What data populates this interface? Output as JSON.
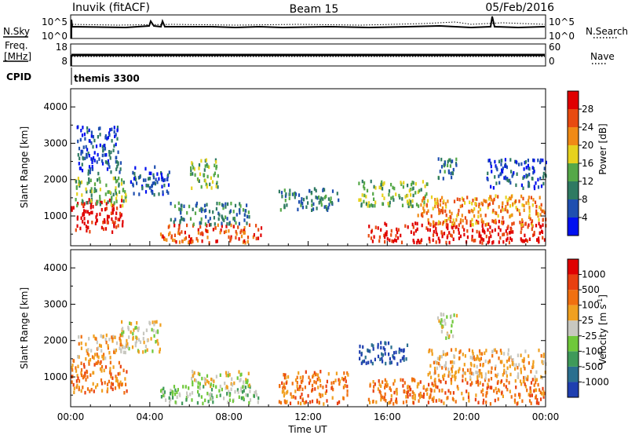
{
  "header": {
    "station": "Inuvik (fitACF)",
    "beam": "Beam 15",
    "date": "05/Feb/2016"
  },
  "strips": {
    "nsky_label": "N.Sky",
    "nsky_ticks": [
      "10^5",
      "10^0"
    ],
    "nsearch_label": "N.Search",
    "nsearch_ticks": [
      "10^5",
      "10^0"
    ],
    "freq_label_1": "Freq.",
    "freq_label_2": "[MHz]",
    "freq_ticks": [
      "18",
      "8"
    ],
    "nave_label": "Nave",
    "nave_ticks": [
      "60",
      "0"
    ],
    "cpid_label": "CPID",
    "cpid_value": "themis 3300"
  },
  "chart_data": [
    {
      "type": "heatmap",
      "name": "power",
      "xlabel": "Time UT",
      "ylabel": "Slant Range [km]",
      "xlim": [
        0,
        24
      ],
      "ylim": [
        180,
        4500
      ],
      "y_ticks": [
        "1000",
        "2000",
        "3000",
        "4000"
      ],
      "colorbar_label": "Power [dB]",
      "colorbar_ticks": [
        "4",
        "8",
        "12",
        "16",
        "20",
        "24",
        "28"
      ],
      "colorbar_colors": [
        "#0010f0",
        "#1f4fb0",
        "#2f7a62",
        "#55a848",
        "#e6d21e",
        "#f08a15",
        "#e84a10",
        "#e00000"
      ],
      "regions": [
        {
          "t": [
            0.0,
            2.6
          ],
          "r": [
            600,
            1500
          ],
          "level": 7
        },
        {
          "t": [
            0.2,
            2.8
          ],
          "r": [
            1300,
            2100
          ],
          "level": 3
        },
        {
          "t": [
            0.3,
            2.5
          ],
          "r": [
            2200,
            3500
          ],
          "level": 1
        },
        {
          "t": [
            3.0,
            5.0
          ],
          "r": [
            1600,
            2400
          ],
          "level": 1
        },
        {
          "t": [
            4.5,
            9.6
          ],
          "r": [
            300,
            800
          ],
          "level": 6
        },
        {
          "t": [
            5.0,
            9.0
          ],
          "r": [
            800,
            1400
          ],
          "level": 2
        },
        {
          "t": [
            6.0,
            7.5
          ],
          "r": [
            1800,
            2600
          ],
          "level": 3
        },
        {
          "t": [
            10.5,
            13.5
          ],
          "r": [
            1200,
            1800
          ],
          "level": 2
        },
        {
          "t": [
            14.5,
            18.0
          ],
          "r": [
            1300,
            2000
          ],
          "level": 3
        },
        {
          "t": [
            15.0,
            24.0
          ],
          "r": [
            300,
            900
          ],
          "level": 7
        },
        {
          "t": [
            17.5,
            24.0
          ],
          "r": [
            800,
            1600
          ],
          "level": 5
        },
        {
          "t": [
            18.5,
            19.5
          ],
          "r": [
            2000,
            2700
          ],
          "level": 2
        },
        {
          "t": [
            21.0,
            24.0
          ],
          "r": [
            1800,
            2600
          ],
          "level": 1
        }
      ]
    },
    {
      "type": "heatmap",
      "name": "velocity",
      "xlabel": "Time UT",
      "ylabel": "Slant Range [km]",
      "xlim": [
        0,
        24
      ],
      "ylim": [
        180,
        4500
      ],
      "y_ticks": [
        "1000",
        "2000",
        "3000",
        "4000"
      ],
      "x_ticks": [
        "00:00",
        "04:00",
        "08:00",
        "12:00",
        "16:00",
        "20:00",
        "00:00"
      ],
      "colorbar_label": "Velocity [m s",
      "colorbar_label_sup": "-1",
      "colorbar_label_end": "]",
      "colorbar_ticks": [
        "1000",
        "500",
        "100",
        "25",
        "-25",
        "-100",
        "-500",
        "-1000"
      ],
      "colorbar_colors": [
        "#1f3fb0",
        "#2a6f8f",
        "#3f9a5a",
        "#6fc83a",
        "#c8c8c0",
        "#f0a020",
        "#f07010",
        "#e84010",
        "#e00000"
      ],
      "regions": [
        {
          "t": [
            0.0,
            2.8
          ],
          "r": [
            600,
            1500
          ],
          "level": 6
        },
        {
          "t": [
            0.3,
            2.6
          ],
          "r": [
            1500,
            2200
          ],
          "level": 5
        },
        {
          "t": [
            2.5,
            4.5
          ],
          "r": [
            1700,
            2600
          ],
          "level": 4
        },
        {
          "t": [
            4.5,
            9.5
          ],
          "r": [
            300,
            800
          ],
          "level": 3
        },
        {
          "t": [
            6.0,
            9.0
          ],
          "r": [
            700,
            1200
          ],
          "level": 4
        },
        {
          "t": [
            10.5,
            14.0
          ],
          "r": [
            300,
            1200
          ],
          "level": 6
        },
        {
          "t": [
            14.5,
            17.0
          ],
          "r": [
            1400,
            2000
          ],
          "level": 0
        },
        {
          "t": [
            15.0,
            24.0
          ],
          "r": [
            300,
            1000
          ],
          "level": 6
        },
        {
          "t": [
            18.5,
            19.5
          ],
          "r": [
            2100,
            2800
          ],
          "level": 4
        },
        {
          "t": [
            18.0,
            24.0
          ],
          "r": [
            1000,
            1800
          ],
          "level": 5
        }
      ]
    }
  ]
}
